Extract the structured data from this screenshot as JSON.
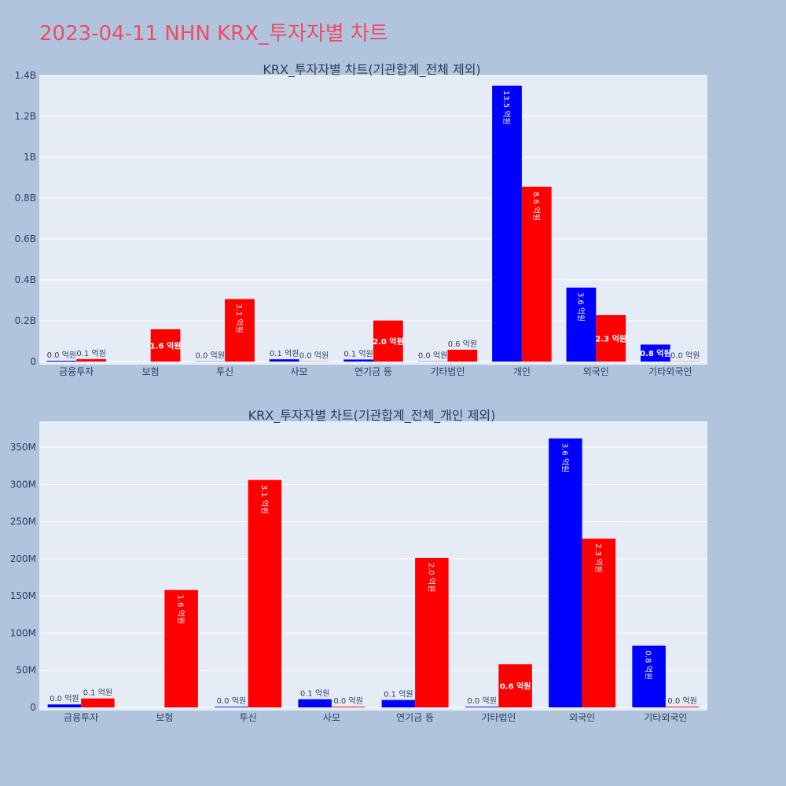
{
  "page": {
    "title": "2023-04-11 NHN KRX_투자자별 차트"
  },
  "colors": {
    "background": "#b0c4de",
    "plot_bg": "#e5ecf6",
    "grid": "#ffffff",
    "series_blue": "#0000ff",
    "series_red": "#ff0000",
    "title": "#ef4c64",
    "axis_text": "#2a3f5f"
  },
  "chart_data": [
    {
      "type": "bar",
      "title": "KRX_투자자별 차트(기관합계_전체 제외)",
      "xlabel": "",
      "ylabel": "",
      "ylim": [
        0,
        1400000000
      ],
      "yticks": [
        0,
        200000000,
        400000000,
        600000000,
        800000000,
        1000000000,
        1200000000,
        1400000000
      ],
      "ytick_labels": [
        "0",
        "0.2B",
        "0.4B",
        "0.6B",
        "0.8B",
        "1B",
        "1.2B",
        "1.4B"
      ],
      "categories": [
        "금융투자",
        "보험",
        "투신",
        "사모",
        "연기금 등",
        "기타법인",
        "개인",
        "외국인",
        "기타외국인"
      ],
      "series": [
        {
          "color": "#0000ff",
          "values": [
            4000000,
            null,
            1000000,
            11000000,
            10000000,
            1000000,
            1350000000,
            362000000,
            83000000
          ],
          "labels": [
            "0.0 억원",
            "",
            "0.0 억원",
            "0.1 억원",
            "0.1 억원",
            "0.0 억원",
            "13.5 억원",
            "3.6 억원",
            "0.8 억원"
          ]
        },
        {
          "color": "#ff0000",
          "values": [
            12000000,
            158000000,
            306000000,
            1000000,
            201000000,
            58000000,
            855000000,
            227000000,
            1000000
          ],
          "labels": [
            "0.1 억원",
            "1.6 억원",
            "3.1 억원",
            "0.0 억원",
            "2.0 억원",
            "0.6 억원",
            "8.6 억원",
            "2.3 억원",
            "0.0 억원"
          ]
        }
      ],
      "grid": true,
      "legend": "none"
    },
    {
      "type": "bar",
      "title": "KRX_투자자별 차트(기관합계_전체_개인 제외)",
      "xlabel": "",
      "ylabel": "",
      "ylim": [
        0,
        385000000
      ],
      "yticks": [
        0,
        50000000,
        100000000,
        150000000,
        200000000,
        250000000,
        300000000,
        350000000
      ],
      "ytick_labels": [
        "0",
        "50M",
        "100M",
        "150M",
        "200M",
        "250M",
        "300M",
        "350M"
      ],
      "categories": [
        "금융투자",
        "보험",
        "투신",
        "사모",
        "연기금 등",
        "기타법인",
        "외국인",
        "기타외국인"
      ],
      "series": [
        {
          "color": "#0000ff",
          "values": [
            4000000,
            null,
            1000000,
            11000000,
            10000000,
            1000000,
            362000000,
            83000000
          ],
          "labels": [
            "0.0 억원",
            "",
            "0.0 억원",
            "0.1 억원",
            "0.1 억원",
            "0.0 억원",
            "3.6 억원",
            "0.8 억원"
          ]
        },
        {
          "color": "#ff0000",
          "values": [
            12000000,
            158000000,
            306000000,
            1000000,
            201000000,
            58000000,
            227000000,
            1000000
          ],
          "labels": [
            "0.1 억원",
            "1.6 억원",
            "3.1 억원",
            "0.0 억원",
            "2.0 억원",
            "0.6 억원",
            "2.3 억원",
            "0.0 억원"
          ]
        }
      ],
      "grid": true,
      "legend": "none"
    }
  ]
}
